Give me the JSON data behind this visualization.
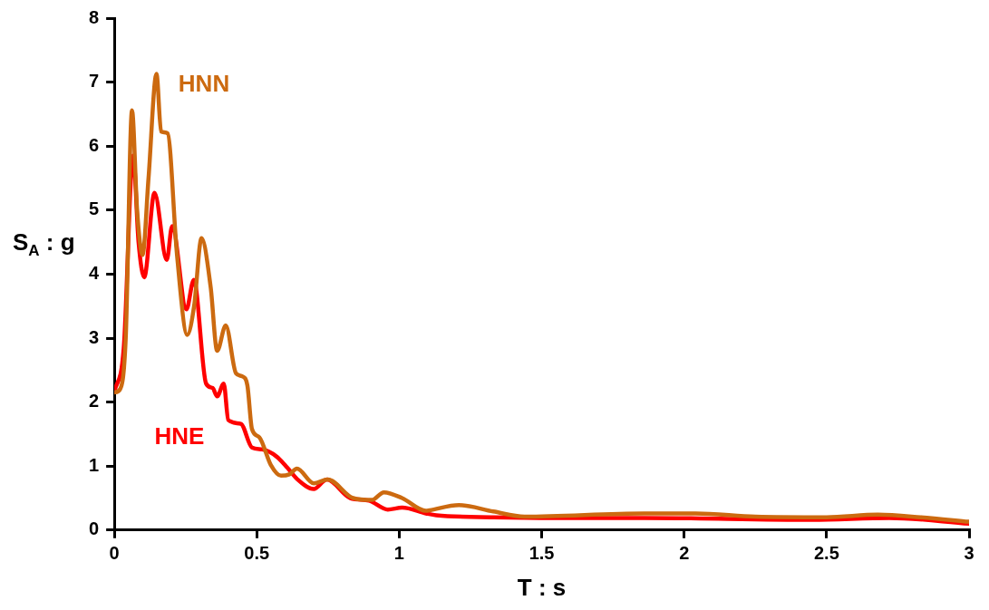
{
  "chart_data": {
    "type": "line",
    "xlabel": "T : s",
    "ylabel": "S$_{A}$ : g",
    "xlim": [
      0,
      3
    ],
    "xticks": [
      0,
      0.5,
      1,
      1.5,
      2,
      2.5,
      3
    ],
    "ylim": [
      0,
      8
    ],
    "yticks": [
      0,
      1,
      2,
      3,
      4,
      5,
      6,
      7,
      8
    ],
    "grid": false,
    "legend": false,
    "marker": "none",
    "line_style": "solid",
    "series": [
      {
        "name": "HNN",
        "color": "#cc6a10",
        "x": [
          0,
          0.02,
          0.04,
          0.062,
          0.08,
          0.099,
          0.12,
          0.148,
          0.164,
          0.187,
          0.22,
          0.256,
          0.28,
          0.306,
          0.338,
          0.361,
          0.391,
          0.427,
          0.45,
          0.467,
          0.483,
          0.509,
          0.549,
          0.585,
          0.614,
          0.641,
          0.7,
          0.749,
          0.838,
          0.904,
          0.946,
          1.01,
          1.094,
          1.107,
          1.21,
          1.33,
          1.44,
          1.86,
          2.04,
          2.25,
          2.5,
          2.68,
          2.83,
          3
        ],
        "values": [
          2.15,
          2.2,
          3.0,
          6.56,
          5.0,
          4.3,
          5.5,
          7.13,
          6.23,
          6.2,
          4.3,
          3.05,
          3.5,
          4.56,
          3.8,
          2.8,
          3.2,
          2.45,
          2.4,
          2.26,
          1.58,
          1.45,
          1.02,
          0.85,
          0.87,
          0.96,
          0.73,
          0.79,
          0.5,
          0.47,
          0.59,
          0.5,
          0.3,
          0.31,
          0.39,
          0.29,
          0.21,
          0.26,
          0.26,
          0.21,
          0.2,
          0.24,
          0.2,
          0.13
        ]
      },
      {
        "name": "HNE",
        "color": "#ff0000",
        "x": [
          0,
          0.033,
          0.066,
          0.085,
          0.105,
          0.141,
          0.184,
          0.203,
          0.253,
          0.279,
          0.322,
          0.345,
          0.361,
          0.384,
          0.4,
          0.444,
          0.483,
          0.519,
          0.569,
          0.608,
          0.641,
          0.7,
          0.746,
          0.828,
          0.894,
          0.96,
          1.01,
          1.094,
          1.13,
          1.33,
          1.54,
          1.86,
          2.45,
          2.72,
          3
        ],
        "values": [
          2.16,
          2.84,
          5.85,
          4.5,
          3.95,
          5.27,
          4.22,
          4.75,
          3.45,
          3.91,
          2.29,
          2.22,
          2.09,
          2.29,
          1.72,
          1.66,
          1.29,
          1.26,
          1.15,
          0.97,
          0.8,
          0.64,
          0.79,
          0.5,
          0.46,
          0.32,
          0.35,
          0.26,
          0.23,
          0.2,
          0.19,
          0.19,
          0.16,
          0.19,
          0.1
        ]
      }
    ]
  }
}
